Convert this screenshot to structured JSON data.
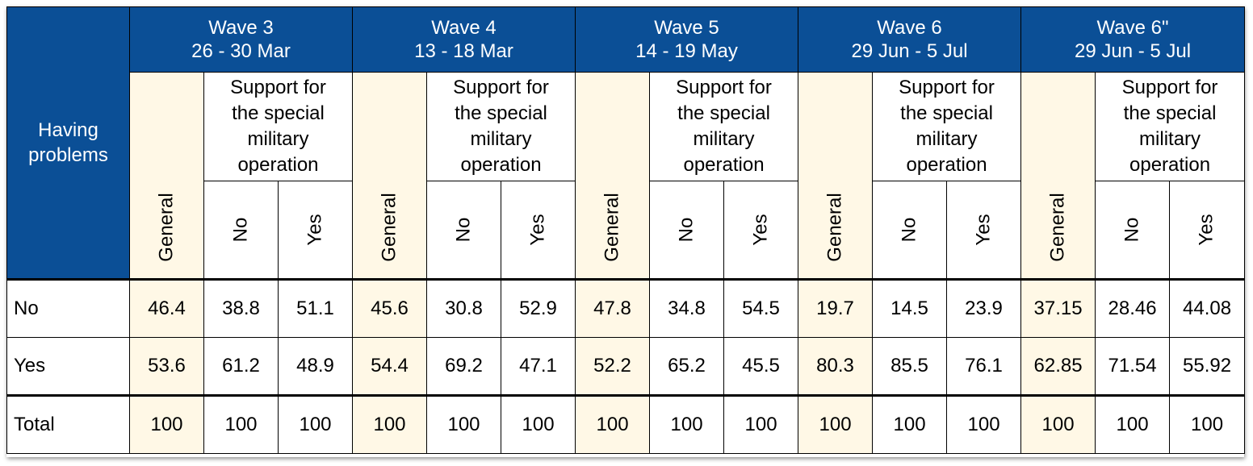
{
  "corner_label": "Having problems",
  "support_label": "Support for the special military operation",
  "sub_labels": {
    "general": "General",
    "no": "No",
    "yes": "Yes"
  },
  "waves": [
    {
      "name": "Wave 3",
      "dates": "26 - 30 Mar"
    },
    {
      "name": "Wave 4",
      "dates": "13 - 18 Mar"
    },
    {
      "name": "Wave 5",
      "dates": "14 - 19 May"
    },
    {
      "name": "Wave 6",
      "dates": "29 Jun - 5 Jul"
    },
    {
      "name": "Wave 6\"",
      "dates": "29 Jun - 5 Jul"
    }
  ],
  "rows": [
    {
      "label": "No",
      "values": [
        "46.4",
        "38.8",
        "51.1",
        "45.6",
        "30.8",
        "52.9",
        "47.8",
        "34.8",
        "54.5",
        "19.7",
        "14.5",
        "23.9",
        "37.15",
        "28.46",
        "44.08"
      ]
    },
    {
      "label": "Yes",
      "values": [
        "53.6",
        "61.2",
        "48.9",
        "54.4",
        "69.2",
        "47.1",
        "52.2",
        "65.2",
        "45.5",
        "80.3",
        "85.5",
        "76.1",
        "62.85",
        "71.54",
        "55.92"
      ]
    },
    {
      "label": "Total",
      "values": [
        "100",
        "100",
        "100",
        "100",
        "100",
        "100",
        "100",
        "100",
        "100",
        "100",
        "100",
        "100",
        "100",
        "100",
        "100"
      ]
    }
  ],
  "colors": {
    "header_blue": "#0b4f96",
    "general_fill": "#fff8e6"
  }
}
